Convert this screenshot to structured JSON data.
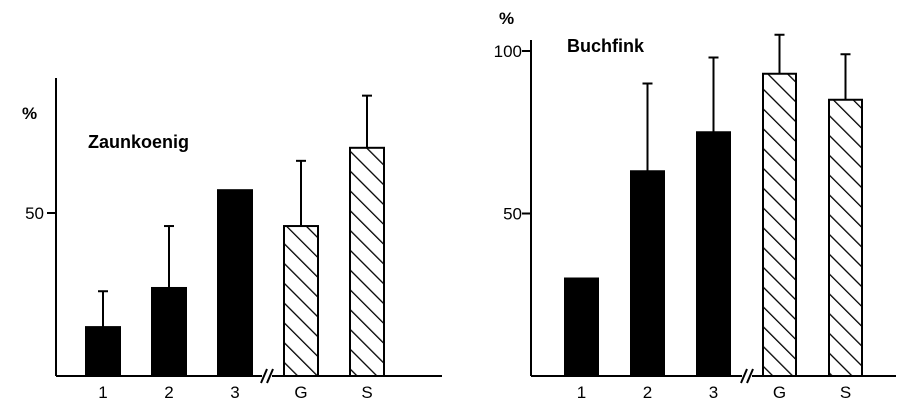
{
  "colors": {
    "ink": "#000000",
    "background": "#ffffff"
  },
  "chart_data": [
    {
      "type": "bar",
      "title": "Zaunkoenig",
      "ylabel": "%",
      "ytick_labels": [
        "50"
      ],
      "yticks": [
        50
      ],
      "ylim": [
        0,
        100
      ],
      "axis_break_between": [
        "3",
        "G"
      ],
      "categories": [
        "1",
        "2",
        "3",
        "G",
        "S"
      ],
      "values": [
        15,
        27,
        57,
        46,
        70
      ],
      "error_upper": [
        26,
        46,
        57,
        66,
        86
      ],
      "fill": [
        "solid",
        "solid",
        "solid",
        "hatched",
        "hatched"
      ],
      "grid": false,
      "legend": "none"
    },
    {
      "type": "bar",
      "title": "Buchfink",
      "ylabel": "%",
      "ytick_labels": [
        "50",
        "100"
      ],
      "yticks": [
        50,
        100
      ],
      "ylim": [
        0,
        100
      ],
      "axis_break_between": [
        "3",
        "G"
      ],
      "categories": [
        "1",
        "2",
        "3",
        "G",
        "S"
      ],
      "values": [
        30,
        63,
        75,
        93,
        85
      ],
      "error_upper": [
        30,
        90,
        98,
        105,
        99
      ],
      "fill": [
        "solid",
        "solid",
        "solid",
        "hatched",
        "hatched"
      ],
      "grid": false,
      "legend": "none"
    }
  ]
}
